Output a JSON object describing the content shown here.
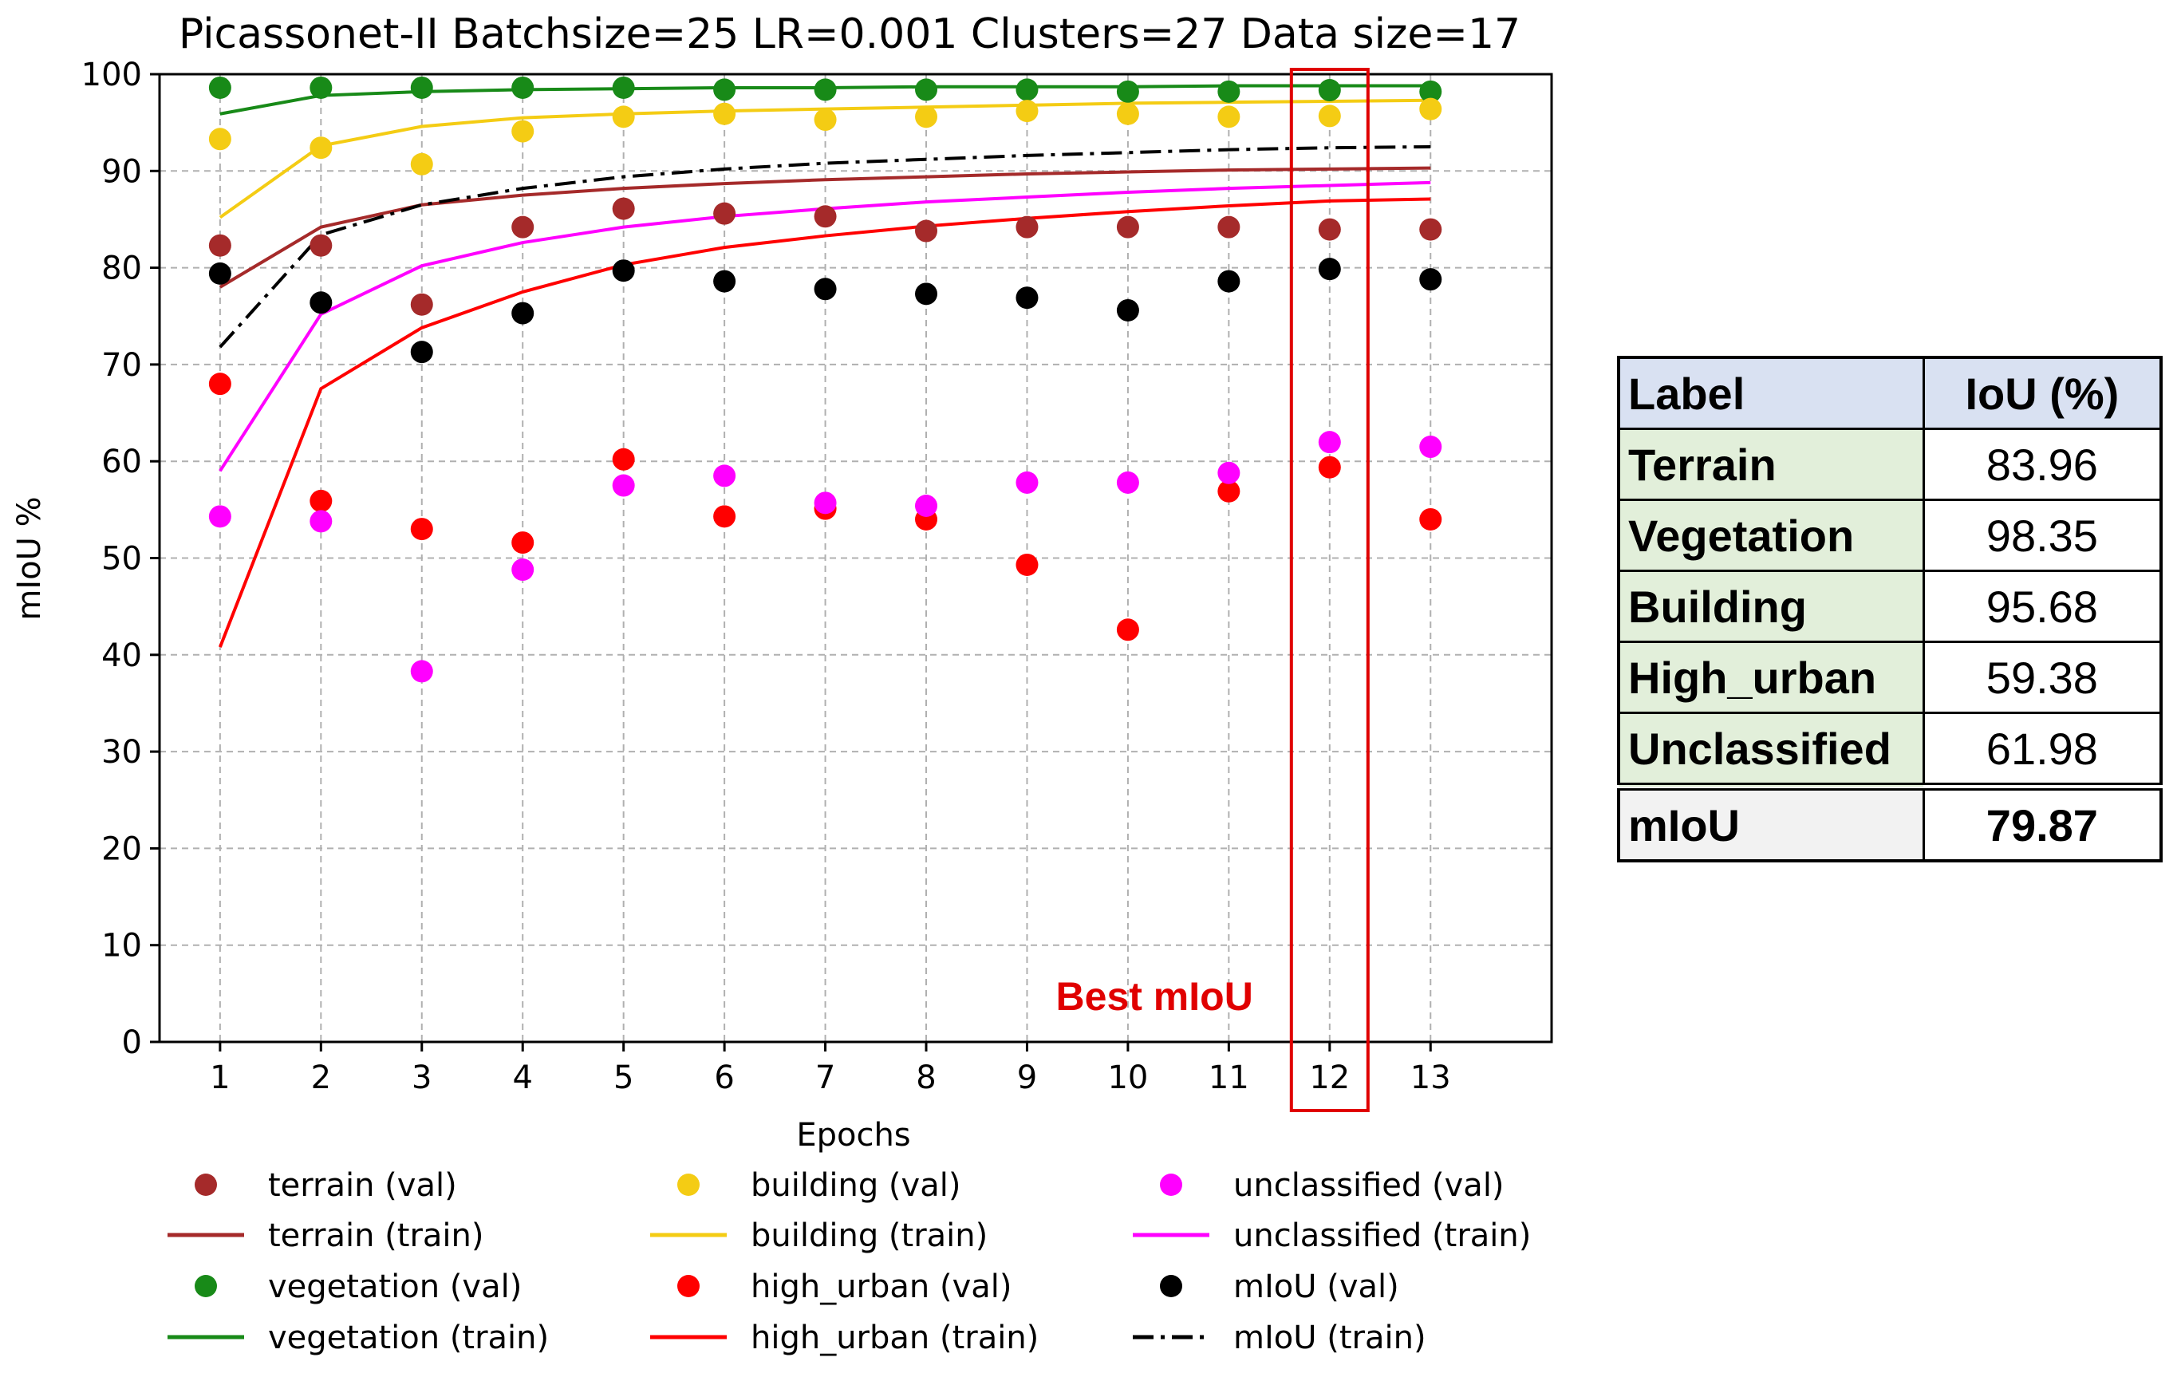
{
  "chart_data": {
    "type": "line",
    "title": "Picassonet-II Batchsize=25 LR=0.001 Clusters=27 Data size=17",
    "xlabel": "Epochs",
    "ylabel": "mIoU %",
    "x": [
      1,
      2,
      3,
      4,
      5,
      6,
      7,
      8,
      9,
      10,
      11,
      12,
      13
    ],
    "xlim": [
      0.4,
      14.2
    ],
    "ylim": [
      0,
      100
    ],
    "yticks": [
      0,
      10,
      20,
      30,
      40,
      50,
      60,
      70,
      80,
      90,
      100
    ],
    "grid": true,
    "legend_position": "bottom",
    "series": [
      {
        "name": "terrain (val)",
        "kind": "scatter",
        "color": "#a52a2a",
        "values": [
          82.3,
          82.3,
          76.2,
          84.2,
          86.1,
          85.6,
          85.3,
          83.8,
          84.2,
          84.2,
          84.2,
          83.96,
          83.96
        ]
      },
      {
        "name": "terrain (train)",
        "kind": "line",
        "dash": "solid",
        "color": "#a52a2a",
        "values": [
          78,
          84.2,
          86.5,
          87.5,
          88.2,
          88.7,
          89.1,
          89.4,
          89.7,
          89.9,
          90.1,
          90.2,
          90.3
        ]
      },
      {
        "name": "vegetation (val)",
        "kind": "scatter",
        "color": "#188a18",
        "values": [
          98.6,
          98.6,
          98.6,
          98.6,
          98.6,
          98.4,
          98.4,
          98.4,
          98.4,
          98.2,
          98.2,
          98.35,
          98.2
        ]
      },
      {
        "name": "vegetation (train)",
        "kind": "line",
        "dash": "solid",
        "color": "#188a18",
        "values": [
          95.9,
          97.8,
          98.2,
          98.4,
          98.5,
          98.6,
          98.6,
          98.7,
          98.7,
          98.7,
          98.8,
          98.8,
          98.8
        ]
      },
      {
        "name": "building (val)",
        "kind": "scatter",
        "color": "#f4cc14",
        "values": [
          93.3,
          92.4,
          90.7,
          94.1,
          95.6,
          95.9,
          95.3,
          95.6,
          96.2,
          95.9,
          95.6,
          95.68,
          96.4
        ]
      },
      {
        "name": "building (train)",
        "kind": "line",
        "dash": "solid",
        "color": "#f4cc14",
        "values": [
          85.2,
          92.6,
          94.6,
          95.5,
          95.9,
          96.2,
          96.4,
          96.6,
          96.8,
          97,
          97.1,
          97.2,
          97.3
        ]
      },
      {
        "name": "high_urban (val)",
        "kind": "scatter",
        "color": "#ff0000",
        "values": [
          68,
          55.9,
          53,
          51.6,
          60.2,
          54.3,
          55.1,
          54,
          49.3,
          42.6,
          56.9,
          59.38,
          54
        ]
      },
      {
        "name": "high_urban (train)",
        "kind": "line",
        "dash": "solid",
        "color": "#ff0000",
        "values": [
          40.8,
          67.5,
          73.8,
          77.5,
          80.3,
          82.1,
          83.3,
          84.3,
          85.1,
          85.8,
          86.4,
          86.9,
          87.1
        ]
      },
      {
        "name": "unclassified (val)",
        "kind": "scatter",
        "color": "#ff00ff",
        "values": [
          54.3,
          53.8,
          38.3,
          48.8,
          57.5,
          58.5,
          55.7,
          55.4,
          57.8,
          57.8,
          58.8,
          61.98,
          61.5
        ]
      },
      {
        "name": "unclassified (train)",
        "kind": "line",
        "dash": "solid",
        "color": "#ff00ff",
        "values": [
          59,
          75.2,
          80.2,
          82.6,
          84.2,
          85.3,
          86.1,
          86.8,
          87.3,
          87.8,
          88.2,
          88.5,
          88.8
        ]
      },
      {
        "name": "mIoU (val)",
        "kind": "scatter",
        "color": "#000000",
        "values": [
          79.4,
          76.4,
          71.3,
          75.3,
          79.7,
          78.6,
          77.8,
          77.3,
          76.9,
          75.6,
          78.6,
          79.87,
          78.8
        ]
      },
      {
        "name": "mIoU (train)",
        "kind": "line",
        "dash": "dashdot",
        "color": "#000000",
        "values": [
          71.8,
          83.4,
          86.5,
          88.2,
          89.4,
          90.2,
          90.8,
          91.2,
          91.6,
          91.9,
          92.2,
          92.4,
          92.5
        ]
      }
    ],
    "annotation": {
      "text": "Best mIoU",
      "epoch": 12,
      "color": "#e00000"
    }
  },
  "table": {
    "header": {
      "label": "Label",
      "value": "IoU (%)"
    },
    "rows": [
      {
        "label": "Terrain",
        "value": "83.96"
      },
      {
        "label": "Vegetation",
        "value": "98.35"
      },
      {
        "label": "Building",
        "value": "95.68"
      },
      {
        "label": "High_urban",
        "value": "59.38"
      },
      {
        "label": "Unclassified",
        "value": "61.98"
      }
    ],
    "summary": {
      "label": "mIoU",
      "value": "79.87"
    }
  }
}
